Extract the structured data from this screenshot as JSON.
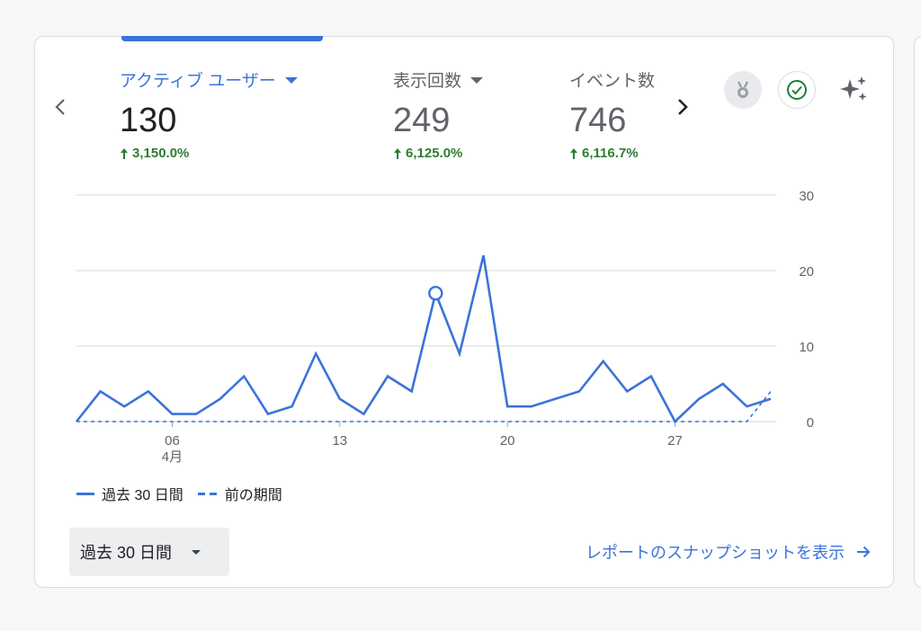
{
  "metrics": [
    {
      "label": "アクティブ ユーザー",
      "value": "130",
      "change": "3,150.0%",
      "active": true
    },
    {
      "label": "表示回数",
      "value": "249",
      "change": "6,125.0%",
      "active": false
    },
    {
      "label": "イベント数",
      "value": "746",
      "change": "6,116.7%",
      "active": false
    }
  ],
  "icons": {
    "prev": "chevron-left-icon",
    "next": "chevron-right-icon",
    "medal": "medal-icon",
    "check": "check-circle-icon",
    "sparkle": "sparkle-icon"
  },
  "colors": {
    "accent": "#3b73d9",
    "positive": "#2e7d32"
  },
  "legend": {
    "current": "過去 30 日間",
    "previous": "前の期間"
  },
  "footer": {
    "date_range": "過去 30 日間",
    "snapshot_link": "レポートのスナップショットを表示"
  },
  "chart_data": {
    "type": "line",
    "x_tick_labels": [
      {
        "day": 6,
        "label": "06",
        "sub": "4月"
      },
      {
        "day": 13,
        "label": "13",
        "sub": ""
      },
      {
        "day": 20,
        "label": "20",
        "sub": ""
      },
      {
        "day": 27,
        "label": "27",
        "sub": ""
      }
    ],
    "y_ticks": [
      0,
      10,
      20,
      30
    ],
    "ylim": [
      0,
      30
    ],
    "x_range": [
      2,
      31
    ],
    "grid": true,
    "series": [
      {
        "name": "過去 30 日間",
        "style": "solid",
        "x": [
          2,
          3,
          4,
          5,
          6,
          7,
          8,
          9,
          10,
          11,
          12,
          13,
          14,
          15,
          16,
          17,
          18,
          19,
          20,
          21,
          22,
          23,
          24,
          25,
          26,
          27,
          28,
          29,
          30,
          31
        ],
        "values": [
          0,
          4,
          2,
          4,
          1,
          1,
          3,
          6,
          1,
          2,
          9,
          3,
          1,
          6,
          4,
          17,
          9,
          22,
          2,
          2,
          3,
          4,
          8,
          4,
          6,
          0,
          3,
          5,
          2,
          3
        ],
        "highlight_x": 17
      },
      {
        "name": "前の期間",
        "style": "dashed",
        "x": [
          2,
          3,
          4,
          5,
          6,
          7,
          8,
          9,
          10,
          11,
          12,
          13,
          14,
          15,
          16,
          17,
          18,
          19,
          20,
          21,
          22,
          23,
          24,
          25,
          26,
          27,
          28,
          29,
          30,
          31
        ],
        "values": [
          0,
          0,
          0,
          0,
          0,
          0,
          0,
          0,
          0,
          0,
          0,
          0,
          0,
          0,
          0,
          0,
          0,
          0,
          0,
          0,
          0,
          0,
          0,
          0,
          0,
          0,
          0,
          0,
          0,
          4
        ]
      }
    ]
  }
}
